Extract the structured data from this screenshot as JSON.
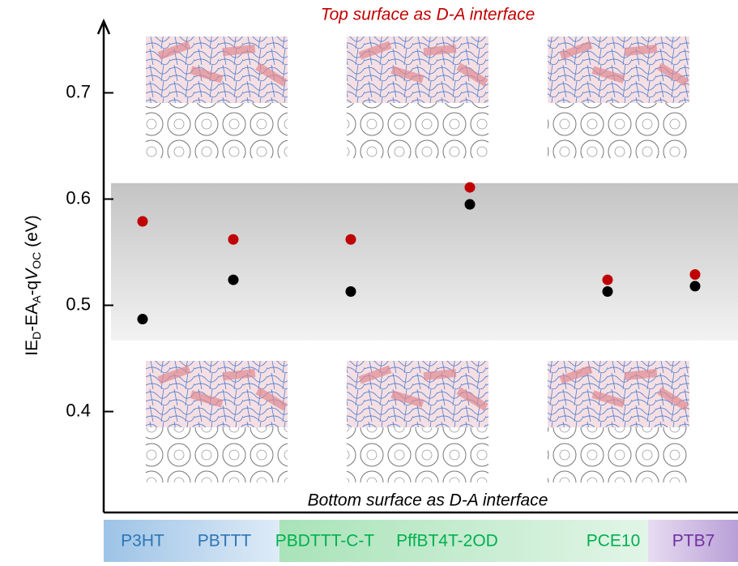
{
  "chart_data": {
    "type": "scatter",
    "top_annotation": "Top surface as D-A interface",
    "bottom_annotation": "Bottom surface as D-A interface",
    "y_label_parts": [
      "IE",
      "D",
      "-EA",
      "A",
      "-q",
      "V",
      "OC",
      " (eV)"
    ],
    "categories": [
      "P3HT",
      "PBTTT",
      "PBDTTT-C-T",
      "PffBT4T-2OD",
      "PCE10",
      "PTB7"
    ],
    "category_colors": [
      "#2e75b6",
      "#2e75b6",
      "#00b050",
      "#00b050",
      "#00b050",
      "#7030a0"
    ],
    "series": [
      {
        "color": "#c00000",
        "values": [
          0.579,
          0.562,
          0.562,
          0.611,
          0.524,
          0.529
        ]
      },
      {
        "color": "#000000",
        "values": [
          0.487,
          0.524,
          0.513,
          0.595,
          0.513,
          0.518
        ]
      }
    ],
    "shaded_range": [
      0.467,
      0.615
    ],
    "ylim": [
      0.305,
      0.766
    ],
    "yticks": [
      0.4,
      0.5,
      0.6,
      0.7
    ]
  }
}
